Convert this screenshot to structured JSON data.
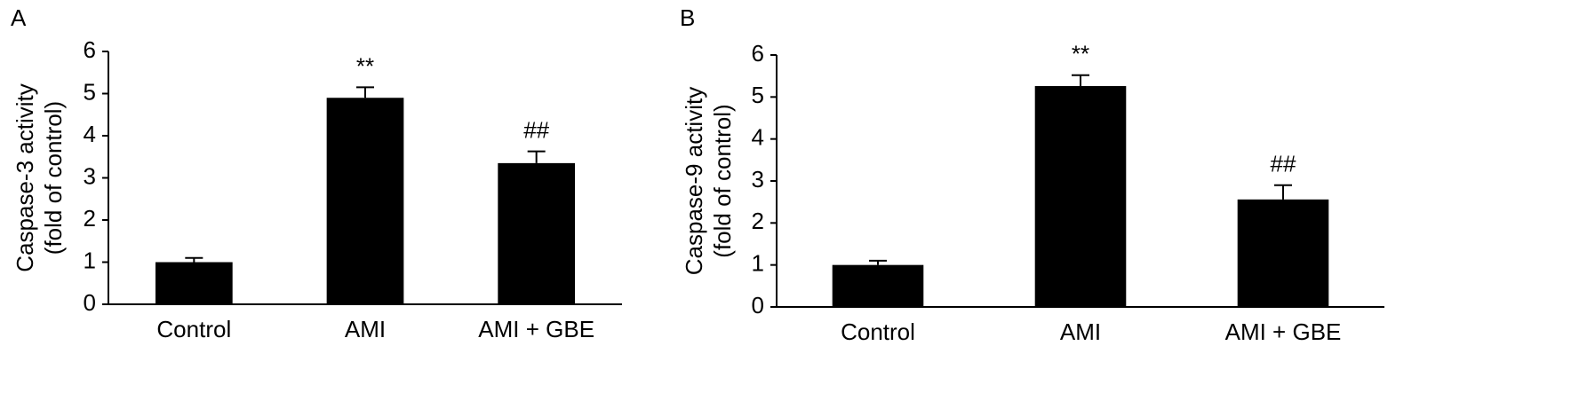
{
  "chart_data": [
    {
      "type": "bar",
      "panel": "A",
      "ylabel": [
        "Caspase-3 activity",
        "(fold of control)"
      ],
      "categories": [
        "Control",
        "AMI",
        "AMI + GBE"
      ],
      "values": [
        1.0,
        4.9,
        3.35
      ],
      "errors": [
        0.1,
        0.25,
        0.28
      ],
      "annotations": [
        null,
        "**",
        "##"
      ],
      "color": "#000000",
      "ylim": [
        0,
        6
      ],
      "yticks": [
        0,
        1,
        2,
        3,
        4,
        5,
        6
      ]
    },
    {
      "type": "bar",
      "panel": "B",
      "ylabel": [
        "Caspase-9 activity",
        "(fold of control)"
      ],
      "categories": [
        "Control",
        "AMI",
        "AMI + GBE"
      ],
      "values": [
        1.0,
        5.26,
        2.56
      ],
      "errors": [
        0.1,
        0.26,
        0.34
      ],
      "annotations": [
        null,
        "**",
        "##"
      ],
      "color": "#000000",
      "ylim": [
        0,
        6
      ],
      "yticks": [
        0,
        1,
        2,
        3,
        4,
        5,
        6
      ]
    }
  ]
}
